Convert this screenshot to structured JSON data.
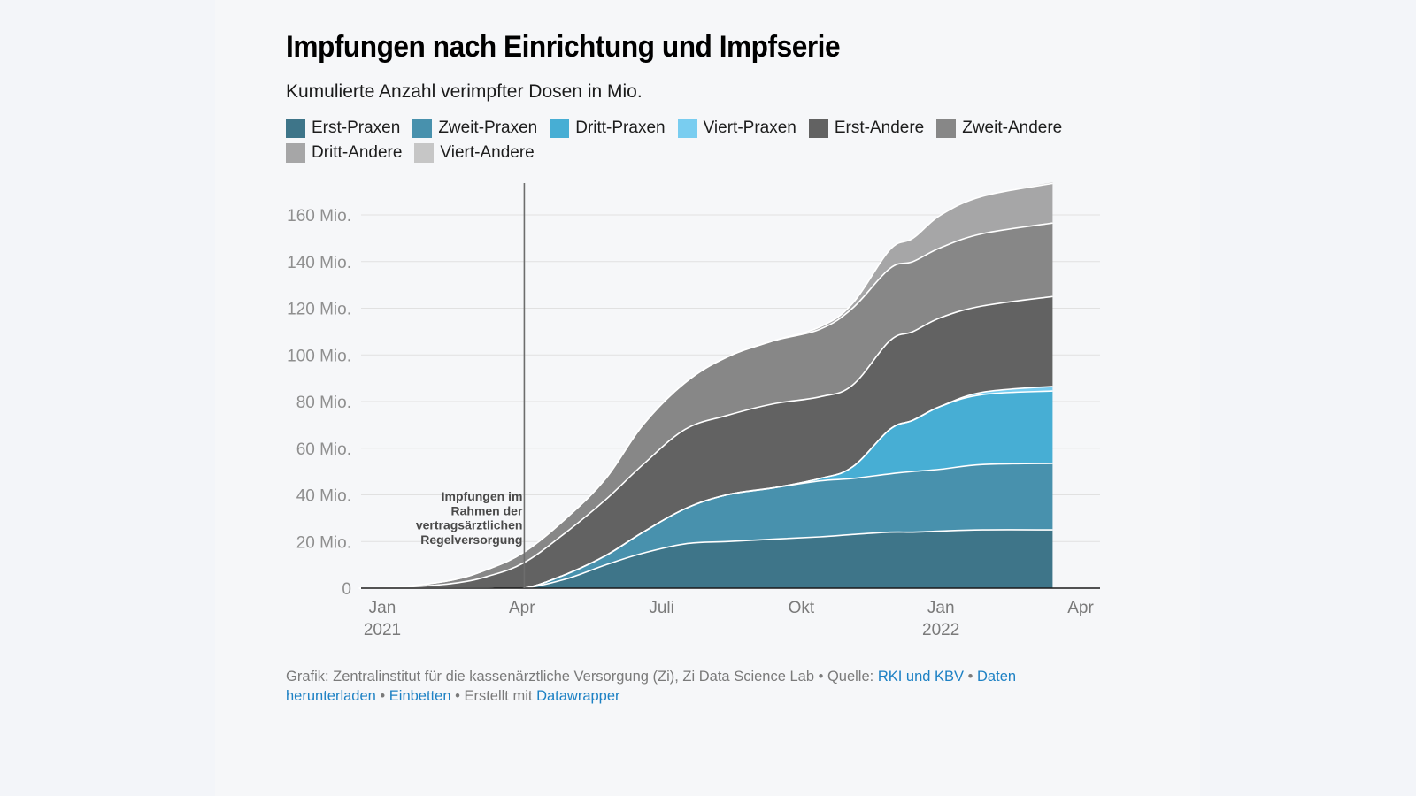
{
  "header": {
    "title": "Impfungen nach Einrichtung und Impfserie",
    "subtitle": "Kumulierte Anzahl verimpfter Dosen in Mio."
  },
  "legend": [
    {
      "label": "Erst-Praxen",
      "color": "#3e7589"
    },
    {
      "label": "Zweit-Praxen",
      "color": "#4891ad"
    },
    {
      "label": "Dritt-Praxen",
      "color": "#47aed4"
    },
    {
      "label": "Viert-Praxen",
      "color": "#79cdf0"
    },
    {
      "label": "Erst-Andere",
      "color": "#626262"
    },
    {
      "label": "Zweit-Andere",
      "color": "#878787"
    },
    {
      "label": "Dritt-Andere",
      "color": "#a6a6a7"
    },
    {
      "label": "Viert-Andere",
      "color": "#c6c6c6"
    }
  ],
  "annotation": {
    "lines": [
      "Impfungen im",
      "Rahmen der",
      "vertragsärztlichen",
      "Regelversorgung"
    ],
    "date": "2021-04-06"
  },
  "footer": {
    "prefix": "Grafik: Zentralinstitut für die kassenärztliche Versorgung (Zi), Zi Data Science Lab • Quelle: ",
    "source_link": "RKI und KBV",
    "sep1": " • ",
    "download_link": "Daten herunterladen",
    "sep2": " • ",
    "embed_link": "Einbetten",
    "sep3": " • Erstellt mit ",
    "datawrapper_link": "Datawrapper"
  },
  "chart_data": {
    "type": "area",
    "stacked": true,
    "title": "Impfungen nach Einrichtung und Impfserie",
    "subtitle": "Kumulierte Anzahl verimpfter Dosen in Mio.",
    "xlabel": "",
    "ylabel": "",
    "x_unit": "months since Jan 2021",
    "x": [
      -0.5,
      0.5,
      1.5,
      2.25,
      3.05,
      3.95,
      4.8,
      5.6,
      6.5,
      7.4,
      8.4,
      9.4,
      10.1,
      10.9,
      11.4,
      12.0,
      12.9,
      14.4
    ],
    "xlim": [
      -0.5,
      14.4
    ],
    "ylim": [
      0,
      174
    ],
    "y_ticks": [
      0,
      20,
      40,
      60,
      80,
      100,
      120,
      140,
      160
    ],
    "y_tick_labels": [
      "0",
      "20 Mio.",
      "40 Mio.",
      "60 Mio.",
      "80 Mio.",
      "100 Mio.",
      "120 Mio.",
      "140 Mio.",
      "160 Mio."
    ],
    "x_ticks": [
      {
        "x": 0,
        "label": "Jan",
        "sub": "2021"
      },
      {
        "x": 3,
        "label": "Apr",
        "sub": ""
      },
      {
        "x": 6,
        "label": "Juli",
        "sub": ""
      },
      {
        "x": 9,
        "label": "Okt",
        "sub": ""
      },
      {
        "x": 12,
        "label": "Jan",
        "sub": "2022"
      },
      {
        "x": 15,
        "label": "Apr",
        "sub": ""
      }
    ],
    "grid": true,
    "legend_position": "top",
    "annotation_x": 3.05,
    "series": [
      {
        "name": "Erst-Praxen",
        "values": [
          0,
          0,
          0,
          0,
          0,
          4,
          10,
          15,
          19,
          20,
          21,
          22,
          23,
          24,
          24,
          24.5,
          25,
          25
        ]
      },
      {
        "name": "Zweit-Praxen",
        "values": [
          0,
          0,
          0,
          0,
          0,
          2,
          4,
          9,
          15,
          20,
          22,
          24,
          24,
          25,
          26,
          26.5,
          28,
          28.5
        ]
      },
      {
        "name": "Dritt-Praxen",
        "values": [
          0,
          0,
          0,
          0,
          0,
          0,
          0,
          0,
          0,
          0,
          0,
          1,
          5,
          19,
          22,
          27,
          30,
          31
        ]
      },
      {
        "name": "Viert-Praxen",
        "values": [
          0,
          0,
          0,
          0,
          0,
          0,
          0,
          0,
          0,
          0,
          0,
          0,
          0,
          0,
          0,
          0,
          1,
          2
        ]
      },
      {
        "name": "Erst-Andere",
        "values": [
          0,
          0.5,
          2,
          5,
          11,
          18,
          24,
          29,
          34,
          34,
          36,
          35,
          35,
          38,
          38,
          38,
          37,
          38.5
        ]
      },
      {
        "name": "Zweit-Andere",
        "values": [
          0,
          0.3,
          1.5,
          3,
          4.5,
          6,
          9,
          17,
          20,
          25,
          27,
          29,
          33,
          31,
          30,
          30,
          31,
          31.5
        ]
      },
      {
        "name": "Dritt-Andere",
        "values": [
          0,
          0,
          0,
          0,
          0,
          0,
          0,
          0,
          0,
          0,
          0,
          1,
          2,
          8,
          10,
          14,
          16,
          17
        ]
      },
      {
        "name": "Viert-Andere",
        "values": [
          0,
          0,
          0,
          0,
          0,
          0,
          0,
          0,
          0,
          0,
          0,
          0,
          0,
          0,
          0,
          0,
          0,
          0.5
        ]
      }
    ]
  }
}
